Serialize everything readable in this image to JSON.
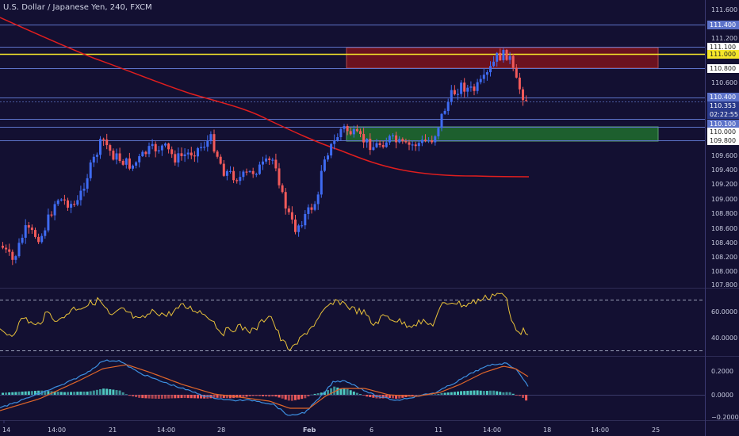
{
  "window": {
    "title": "U.S. Dollar / Japanese Yen, 240, FXCM"
  },
  "colors": {
    "background": "#131032",
    "bull": "#3f6bf2",
    "bear": "#f25a5a",
    "ma": "#e01e1e",
    "osc": "#e8c13a",
    "macd": "#3d8fe0",
    "signal": "#e0662a",
    "hist_pos": "#4fc8c0",
    "hist_neg": "#ef5a5a",
    "resistance_zone": "#6b1220",
    "support_zone": "#1d5f2e",
    "horizontal_lines": "#5d73c9",
    "highlight_line": "#f5e62a"
  },
  "price_axis": {
    "ticks": [
      "111.600",
      "111.400",
      "111.200",
      "111.100",
      "111.000",
      "110.800",
      "110.600",
      "110.400",
      "110.353",
      "02:22:55",
      "110.100",
      "110.000",
      "109.800",
      "109.600",
      "109.400",
      "109.200",
      "109.000",
      "108.800",
      "108.600",
      "108.400",
      "108.200",
      "108.000",
      "107.800"
    ],
    "tag_111": "111.000",
    "tag_1104": "110.400",
    "tag_current": "110.353",
    "tag_timer": "02:22:55",
    "tag_1101": "110.100",
    "tag_1100": "110.000",
    "tag_1098": "109.800",
    "tag_1111": "111.100",
    "tag_1108": "110.800",
    "tag_1114": "111.400",
    "plain_111600": "111.600",
    "plain_111200": "111.200",
    "plain_110600": "110.600",
    "plain_109600": "109.600",
    "plain_109400": "109.400",
    "plain_109200": "109.200",
    "plain_109000": "109.000",
    "plain_108800": "108.800",
    "plain_108600": "108.600",
    "plain_108400": "108.400",
    "plain_108200": "108.200",
    "plain_108000": "108.000",
    "plain_107800": "107.800"
  },
  "osc_axis": {
    "label_60": "60.0000",
    "label_40": "40.0000"
  },
  "macd_axis": {
    "label_pos": "0.2000",
    "label_zero": "0.0000",
    "label_neg": "−0.2000"
  },
  "time_axis": {
    "labels": [
      "14",
      "14:00",
      "21",
      "14:00",
      "28",
      "Feb",
      "6",
      "11",
      "14:00",
      "18",
      "14:00",
      "25"
    ]
  },
  "chart_data": {
    "type": "candlestick",
    "symbol": "U.S. Dollar / Japanese Yen",
    "interval": "240",
    "source": "FXCM",
    "price_range": [
      107.8,
      111.7
    ],
    "last_price": 110.353,
    "horizontal_levels": [
      111.4,
      111.1,
      111.0,
      110.8,
      110.4,
      110.1,
      110.0,
      109.8
    ],
    "resistance_zone": [
      110.8,
      111.1
    ],
    "support_zone": [
      109.8,
      110.0
    ],
    "oscillator": {
      "range": [
        28,
        80
      ],
      "upper": 70,
      "lower": 30
    },
    "macd": {
      "range": [
        -0.24,
        0.25
      ]
    }
  }
}
